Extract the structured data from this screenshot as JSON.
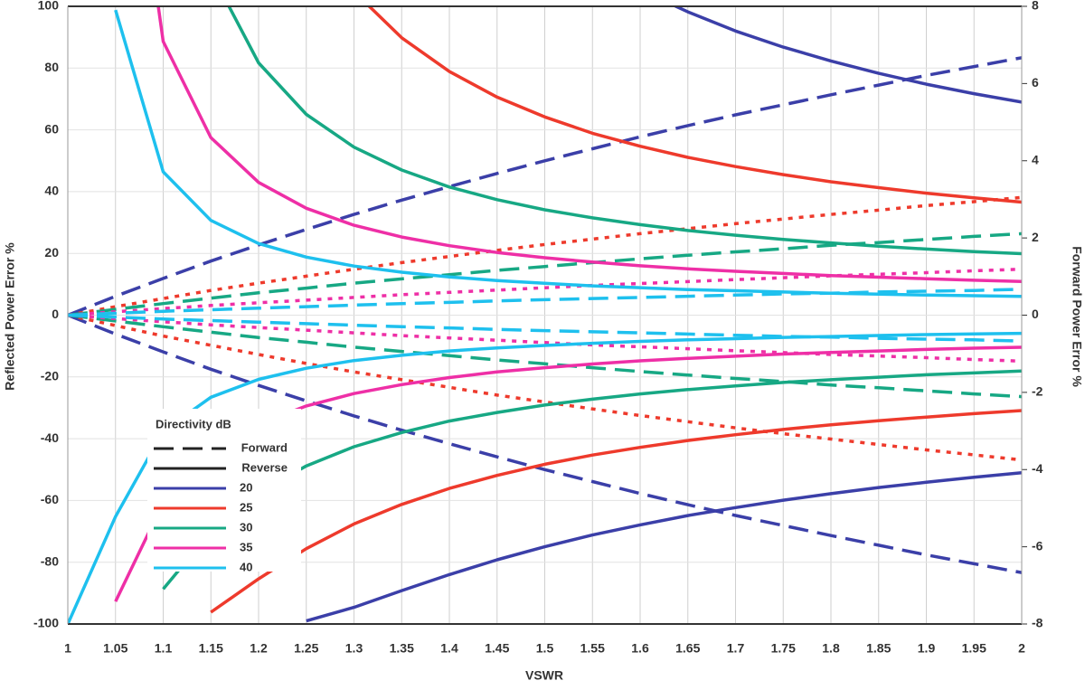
{
  "chart_data": {
    "type": "line",
    "x_label": "VSWR",
    "y_label": "Reflected Power Error %",
    "y2_label": "Forward Power Error %",
    "xlim": [
      1,
      2
    ],
    "ylim": [
      -100,
      100
    ],
    "y2lim": [
      -8,
      8
    ],
    "x": [
      1,
      1.05,
      1.1,
      1.15,
      1.2,
      1.25,
      1.3,
      1.35,
      1.4,
      1.45,
      1.5,
      1.55,
      1.6,
      1.65,
      1.7,
      1.75,
      1.8,
      1.85,
      1.9,
      1.95,
      2
    ],
    "xticks": [
      1,
      1.05,
      1.1,
      1.15,
      1.2,
      1.25,
      1.3,
      1.35,
      1.4,
      1.45,
      1.5,
      1.55,
      1.6,
      1.65,
      1.7,
      1.75,
      1.8,
      1.85,
      1.9,
      1.95,
      2
    ],
    "yticks": [
      -100,
      -80,
      -60,
      -40,
      -20,
      0,
      20,
      40,
      60,
      80,
      100
    ],
    "y2ticks": [
      -8,
      -6,
      -4,
      -2,
      0,
      2,
      4,
      6,
      8
    ],
    "grid": true,
    "legend": {
      "title": "Directivity dB",
      "styles": [
        {
          "name": "Forward",
          "dash": "dashed"
        },
        {
          "name": "Reverse",
          "dash": "solid"
        }
      ]
    },
    "series": [
      {
        "name": "20",
        "color": "#3b3fa8",
        "forward_dash": "dashed",
        "reverse_upper": [
          null,
          null,
          null,
          null,
          null,
          null,
          null,
          null,
          null,
          null,
          null,
          null,
          105.4,
          98.2,
          92.0,
          86.8,
          82.3,
          78.3,
          74.8,
          71.7,
          69.0
        ],
        "reverse_lower": [
          null,
          null,
          null,
          null,
          null,
          -99.0,
          -94.6,
          -89.2,
          -84.0,
          -79.2,
          -75.0,
          -71.2,
          -67.9,
          -64.9,
          -62.3,
          -59.9,
          -57.8,
          -55.8,
          -54.1,
          -52.5,
          -51.0
        ],
        "forward_upper": [
          0,
          0.49,
          0.95,
          1.4,
          1.82,
          2.22,
          2.61,
          2.98,
          3.33,
          3.67,
          4.0,
          4.31,
          4.62,
          4.91,
          5.19,
          5.45,
          5.71,
          5.96,
          6.21,
          6.44,
          6.67
        ],
        "forward_lower": [
          0,
          -0.49,
          -0.95,
          -1.4,
          -1.82,
          -2.22,
          -2.61,
          -2.98,
          -3.33,
          -3.67,
          -4.0,
          -4.31,
          -4.62,
          -4.91,
          -5.19,
          -5.45,
          -5.71,
          -5.96,
          -6.21,
          -6.44,
          -6.67
        ]
      },
      {
        "name": "25",
        "color": "#ee3a2c",
        "forward_dash": "dotted",
        "reverse_upper": [
          null,
          null,
          null,
          null,
          null,
          126.8,
          104.8,
          89.8,
          78.9,
          70.6,
          64.2,
          58.9,
          54.7,
          51.1,
          48.1,
          45.5,
          43.2,
          41.3,
          39.5,
          38.0,
          36.6
        ],
        "reverse_lower": [
          null,
          null,
          null,
          -96.2,
          -85.4,
          -75.6,
          -67.6,
          -61.3,
          -56.1,
          -51.9,
          -48.3,
          -45.3,
          -42.8,
          -40.6,
          -38.7,
          -37.0,
          -35.5,
          -34.2,
          -33.0,
          -31.9,
          -30.9
        ],
        "forward_upper": [
          0,
          0.22,
          0.43,
          0.64,
          0.83,
          1.01,
          1.19,
          1.36,
          1.52,
          1.68,
          1.83,
          1.97,
          2.11,
          2.24,
          2.37,
          2.49,
          2.61,
          2.72,
          2.84,
          2.94,
          3.05
        ],
        "forward_lower": [
          0,
          -0.27,
          -0.54,
          -0.78,
          -1.02,
          -1.25,
          -1.47,
          -1.67,
          -1.87,
          -2.07,
          -2.25,
          -2.43,
          -2.6,
          -2.76,
          -2.92,
          -3.07,
          -3.21,
          -3.35,
          -3.49,
          -3.62,
          -3.75
        ]
      },
      {
        "name": "30",
        "color": "#17a884",
        "forward_dash": "dashed",
        "reverse_upper": [
          null,
          null,
          null,
          111.2,
          81.7,
          65.0,
          54.4,
          47.0,
          41.5,
          37.4,
          34.1,
          31.5,
          29.3,
          27.4,
          25.9,
          24.5,
          23.4,
          22.3,
          21.4,
          20.6,
          19.9
        ],
        "reverse_lower": [
          null,
          null,
          -88.7,
          -70.1,
          -57.5,
          -48.8,
          -42.6,
          -38.0,
          -34.3,
          -31.5,
          -29.1,
          -27.2,
          -25.5,
          -24.1,
          -22.9,
          -21.8,
          -20.9,
          -20.1,
          -19.3,
          -18.7,
          -18.1
        ],
        "forward_upper": [
          0,
          0.15,
          0.3,
          0.44,
          0.58,
          0.7,
          0.83,
          0.94,
          1.05,
          1.16,
          1.26,
          1.36,
          1.46,
          1.55,
          1.64,
          1.72,
          1.81,
          1.88,
          1.96,
          2.04,
          2.11
        ],
        "forward_lower": [
          0,
          -0.15,
          -0.3,
          -0.44,
          -0.58,
          -0.7,
          -0.83,
          -0.94,
          -1.05,
          -1.16,
          -1.26,
          -1.36,
          -1.46,
          -1.55,
          -1.64,
          -1.72,
          -1.81,
          -1.88,
          -1.96,
          -2.04,
          -2.11
        ]
      },
      {
        "name": "35",
        "color": "#ee2fa6",
        "forward_dash": "dotted",
        "reverse_upper": [
          null,
          198.9,
          88.6,
          57.5,
          43.0,
          34.6,
          29.1,
          25.3,
          22.5,
          20.3,
          18.6,
          17.2,
          16.0,
          15.0,
          14.2,
          13.5,
          12.8,
          12.3,
          11.8,
          11.3,
          10.9
        ],
        "reverse_lower": [
          null,
          -92.7,
          -60.7,
          -44.5,
          -35.3,
          -29.4,
          -25.4,
          -22.5,
          -20.2,
          -18.4,
          -17.0,
          -15.8,
          -14.8,
          -14.0,
          -13.3,
          -12.6,
          -12.1,
          -11.6,
          -11.1,
          -10.7,
          -10.4
        ],
        "forward_upper": [
          0,
          0.09,
          0.17,
          0.25,
          0.32,
          0.39,
          0.46,
          0.53,
          0.59,
          0.65,
          0.71,
          0.77,
          0.82,
          0.87,
          0.92,
          0.97,
          1.02,
          1.06,
          1.1,
          1.15,
          1.19
        ],
        "forward_lower": [
          0,
          -0.09,
          -0.17,
          -0.25,
          -0.32,
          -0.39,
          -0.46,
          -0.53,
          -0.59,
          -0.65,
          -0.71,
          -0.77,
          -0.82,
          -0.87,
          -0.92,
          -0.97,
          -1.02,
          -1.06,
          -1.1,
          -1.15,
          -1.19
        ]
      },
      {
        "name": "40",
        "color": "#1ec0ee",
        "forward_dash": "dashed",
        "reverse_upper": [
          null,
          98.8,
          46.4,
          30.7,
          23.2,
          18.8,
          15.9,
          13.9,
          12.4,
          11.2,
          10.3,
          9.5,
          8.9,
          8.3,
          7.9,
          7.5,
          7.1,
          6.8,
          6.5,
          6.3,
          6.1
        ],
        "reverse_lower": [
          -100,
          -65.2,
          -37.6,
          -26.6,
          -20.8,
          -17.2,
          -14.7,
          -13.0,
          -11.6,
          -10.6,
          -9.8,
          -9.1,
          -8.5,
          -8.0,
          -7.6,
          -7.2,
          -6.9,
          -6.6,
          -6.3,
          -6.1,
          -5.9
        ],
        "forward_upper": [
          0,
          0.05,
          0.1,
          0.14,
          0.18,
          0.22,
          0.26,
          0.3,
          0.33,
          0.37,
          0.4,
          0.43,
          0.46,
          0.49,
          0.52,
          0.55,
          0.57,
          0.6,
          0.62,
          0.64,
          0.67
        ],
        "forward_lower": [
          0,
          -0.05,
          -0.1,
          -0.14,
          -0.18,
          -0.22,
          -0.26,
          -0.3,
          -0.33,
          -0.37,
          -0.4,
          -0.43,
          -0.46,
          -0.49,
          -0.52,
          -0.55,
          -0.57,
          -0.6,
          -0.62,
          -0.64,
          -0.67
        ]
      }
    ]
  }
}
